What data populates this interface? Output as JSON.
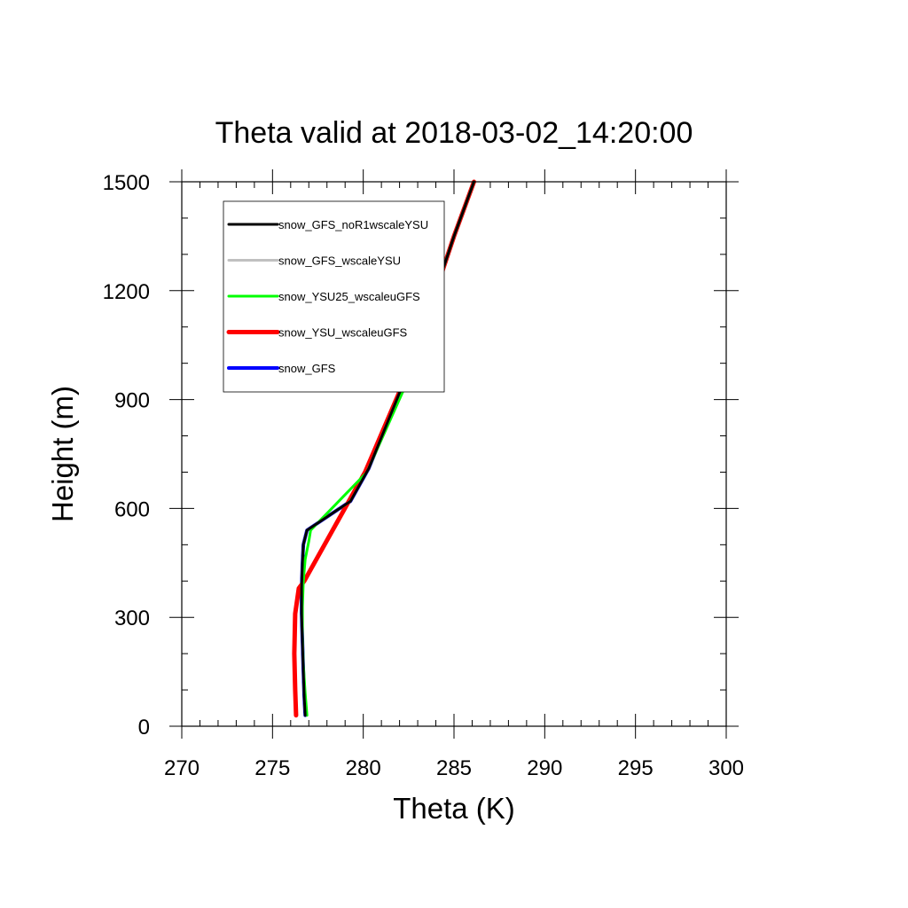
{
  "chart_data": {
    "type": "line",
    "title": "Theta valid at 2018-03-02_14:20:00",
    "xlabel": "Theta (K)",
    "ylabel": "Height (m)",
    "xlim": [
      270,
      300
    ],
    "ylim": [
      0,
      1500
    ],
    "xticks": [
      270,
      275,
      280,
      285,
      290,
      295,
      300
    ],
    "xtick_labels": [
      "270",
      "275",
      "280",
      "285",
      "290",
      "295",
      "300"
    ],
    "xminor_step": 1,
    "yticks": [
      0,
      300,
      600,
      900,
      1200,
      1500
    ],
    "ytick_labels": [
      "0",
      "300",
      "600",
      "900",
      "1200",
      "1500"
    ],
    "yminor_step": 100,
    "grid": false,
    "legend": "top-left",
    "series": [
      {
        "name": "snow_GFS_noR1wscaleYSU",
        "color": "#000000",
        "width": 3,
        "x": [
          276.8,
          276.75,
          276.7,
          276.65,
          276.6,
          276.6,
          276.65,
          276.7,
          276.9,
          279.3,
          280.3,
          282.5,
          284.0,
          285.0,
          286.1
        ],
        "y": [
          30,
          80,
          150,
          230,
          310,
          380,
          450,
          500,
          540,
          620,
          710,
          980,
          1200,
          1350,
          1500
        ]
      },
      {
        "name": "snow_GFS_wscaleYSU",
        "color": "#c0c0c0",
        "width": 3,
        "x": [
          276.8,
          276.75,
          276.7,
          276.65,
          276.6,
          276.6,
          276.65,
          276.7,
          276.9,
          279.3,
          280.3,
          282.5,
          284.0,
          285.0,
          286.1
        ],
        "y": [
          30,
          80,
          150,
          230,
          310,
          380,
          450,
          500,
          540,
          620,
          710,
          980,
          1200,
          1350,
          1500
        ]
      },
      {
        "name": "snow_YSU25_wscaleuGFS",
        "color": "#00ff00",
        "width": 3,
        "x": [
          276.9,
          276.8,
          276.7,
          276.65,
          276.65,
          276.7,
          276.8,
          277.0,
          277.1,
          280.2,
          282.7,
          284.0,
          285.0,
          286.1
        ],
        "y": [
          30,
          90,
          170,
          250,
          330,
          400,
          460,
          510,
          540,
          700,
          980,
          1200,
          1350,
          1500
        ]
      },
      {
        "name": "snow_YSU_wscaleuGFS",
        "color": "#ff0000",
        "width": 5,
        "x": [
          276.3,
          276.25,
          276.2,
          276.25,
          276.45,
          276.75,
          280.1,
          282.5,
          284.0,
          285.0,
          286.1
        ],
        "y": [
          30,
          100,
          200,
          310,
          380,
          400,
          700,
          980,
          1200,
          1350,
          1500
        ]
      },
      {
        "name": "snow_GFS",
        "color": "#0000ff",
        "width": 4,
        "x": [
          276.8,
          276.75,
          276.7,
          276.65,
          276.6,
          276.6,
          276.65,
          276.7,
          276.9,
          279.3,
          280.3,
          282.5,
          284.0,
          285.0,
          286.1
        ],
        "y": [
          30,
          80,
          150,
          230,
          310,
          380,
          450,
          500,
          540,
          620,
          710,
          980,
          1200,
          1350,
          1500
        ]
      }
    ]
  }
}
